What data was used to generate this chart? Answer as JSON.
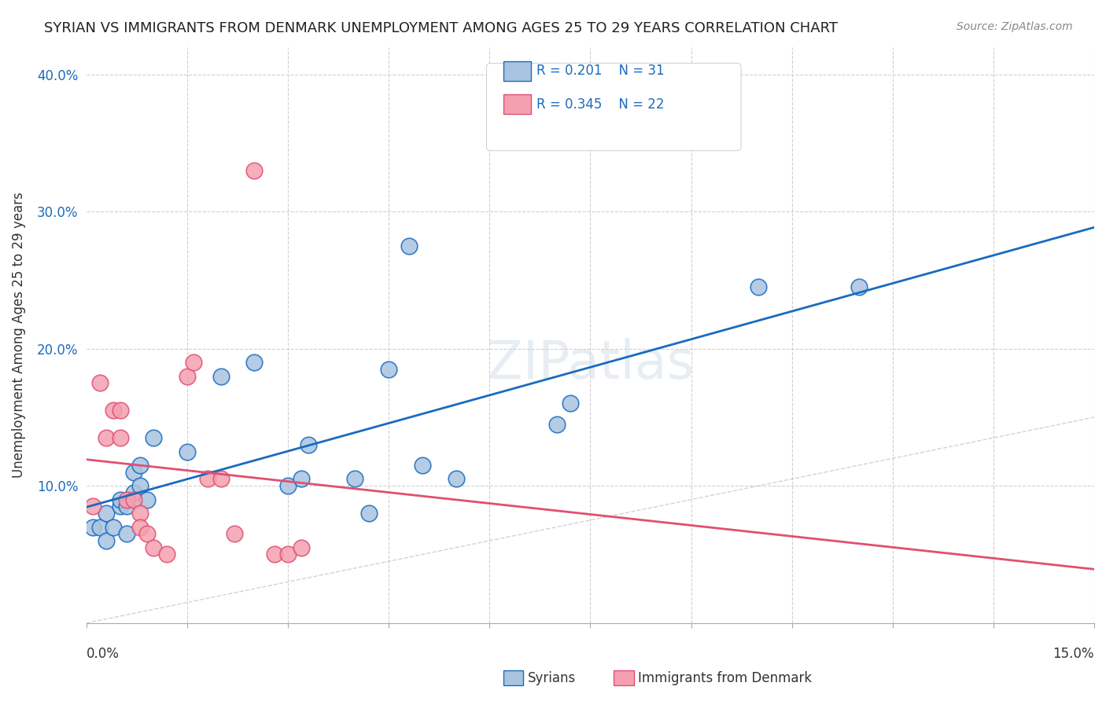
{
  "title": "SYRIAN VS IMMIGRANTS FROM DENMARK UNEMPLOYMENT AMONG AGES 25 TO 29 YEARS CORRELATION CHART",
  "source": "Source: ZipAtlas.com",
  "ylabel": "Unemployment Among Ages 25 to 29 years",
  "yticks": [
    0.0,
    0.1,
    0.2,
    0.3,
    0.4
  ],
  "ytick_labels": [
    "",
    "10.0%",
    "20.0%",
    "30.0%",
    "40.0%"
  ],
  "xlim": [
    0.0,
    0.15
  ],
  "ylim": [
    0.0,
    0.42
  ],
  "legend_r1": "R = 0.201",
  "legend_n1": "N = 31",
  "legend_r2": "R = 0.345",
  "legend_n2": "N = 22",
  "color_syrians": "#a8c4e0",
  "color_denmark": "#f4a0b0",
  "color_syrians_line": "#1a6bbf",
  "color_denmark_line": "#e05070",
  "color_diagonal": "#c0c0c0",
  "syrians_x": [
    0.001,
    0.002,
    0.003,
    0.003,
    0.004,
    0.005,
    0.005,
    0.006,
    0.006,
    0.007,
    0.007,
    0.008,
    0.008,
    0.009,
    0.01,
    0.015,
    0.02,
    0.025,
    0.03,
    0.032,
    0.033,
    0.04,
    0.042,
    0.045,
    0.048,
    0.05,
    0.055,
    0.07,
    0.072,
    0.1,
    0.115
  ],
  "syrians_y": [
    0.07,
    0.07,
    0.08,
    0.06,
    0.07,
    0.085,
    0.09,
    0.085,
    0.065,
    0.095,
    0.11,
    0.1,
    0.115,
    0.09,
    0.135,
    0.125,
    0.18,
    0.19,
    0.1,
    0.105,
    0.13,
    0.105,
    0.08,
    0.185,
    0.275,
    0.115,
    0.105,
    0.145,
    0.16,
    0.245,
    0.245
  ],
  "denmark_x": [
    0.001,
    0.002,
    0.003,
    0.004,
    0.005,
    0.005,
    0.006,
    0.007,
    0.008,
    0.008,
    0.009,
    0.01,
    0.012,
    0.015,
    0.016,
    0.018,
    0.02,
    0.022,
    0.025,
    0.028,
    0.03,
    0.032
  ],
  "denmark_y": [
    0.085,
    0.175,
    0.135,
    0.155,
    0.155,
    0.135,
    0.09,
    0.09,
    0.08,
    0.07,
    0.065,
    0.055,
    0.05,
    0.18,
    0.19,
    0.105,
    0.105,
    0.065,
    0.33,
    0.05,
    0.05,
    0.055
  ],
  "watermark": "ZIPatlas",
  "background_color": "#ffffff"
}
